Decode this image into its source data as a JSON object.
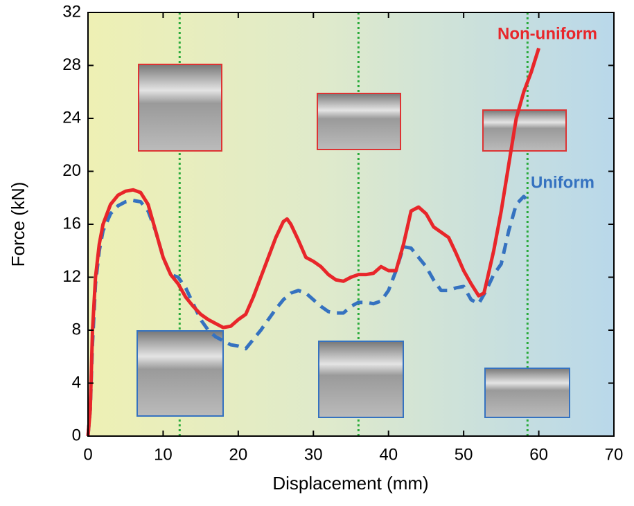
{
  "chart_data": {
    "type": "line",
    "x_label": "Displacement (mm)",
    "y_label": "Force (kN)",
    "xlim": [
      0,
      70
    ],
    "xticks": [
      0,
      10,
      20,
      30,
      40,
      50,
      60,
      70
    ],
    "ylim": [
      0,
      32
    ],
    "yticks": [
      0,
      4,
      8,
      12,
      16,
      20,
      24,
      28,
      32
    ],
    "reference_lines": [
      12.2,
      36,
      58.5
    ],
    "reference_color": "#2aaa3a",
    "series": [
      {
        "name": "Non-uniform",
        "color": "#e8262a",
        "dashed": false,
        "x": [
          0,
          0.3,
          0.6,
          1,
          1.5,
          2,
          3,
          4,
          5,
          6,
          7,
          8,
          9,
          10,
          11,
          12,
          13,
          14,
          15,
          16,
          17,
          18,
          19,
          20,
          21,
          22,
          23,
          24,
          25,
          26,
          26.5,
          27,
          28,
          29,
          30,
          31,
          32,
          33,
          34,
          35,
          36,
          37,
          38,
          39,
          40,
          41,
          42,
          43,
          44,
          45,
          46,
          47,
          48,
          49,
          50,
          51,
          52,
          52.7,
          53,
          54,
          55,
          56,
          57,
          58,
          59,
          60
        ],
        "values": [
          0,
          2,
          8,
          12,
          14.5,
          16,
          17.5,
          18.2,
          18.5,
          18.6,
          18.4,
          17.5,
          15.5,
          13.5,
          12.2,
          11.5,
          10.5,
          9.8,
          9.2,
          8.8,
          8.5,
          8.2,
          8.3,
          8.8,
          9.2,
          10.5,
          12,
          13.5,
          15,
          16.2,
          16.4,
          16,
          14.8,
          13.5,
          13.2,
          12.8,
          12.2,
          11.8,
          11.7,
          12,
          12.2,
          12.2,
          12.3,
          12.8,
          12.5,
          12.5,
          14.5,
          17,
          17.3,
          16.8,
          15.8,
          15.4,
          15,
          13.8,
          12.5,
          11.5,
          10.6,
          10.8,
          11.5,
          14,
          17,
          20.5,
          24,
          26,
          27.5,
          29.3
        ]
      },
      {
        "name": "Uniform",
        "color": "#3572c0",
        "dashed": true,
        "x": [
          0,
          0.3,
          0.6,
          1,
          1.5,
          2,
          3,
          4,
          5,
          6,
          7,
          8,
          9,
          10,
          11,
          12,
          13,
          14,
          15,
          16,
          17,
          18,
          19,
          20,
          21,
          22,
          23,
          24,
          25,
          26,
          27,
          28,
          29,
          30,
          31,
          32,
          33,
          34,
          35,
          36,
          37,
          38,
          39,
          40,
          41,
          42,
          43,
          44,
          45,
          46,
          47,
          48,
          49,
          50,
          51,
          52,
          53,
          54,
          55,
          56,
          57,
          58,
          58.5
        ],
        "values": [
          0,
          2,
          7,
          11.5,
          14,
          15.5,
          16.8,
          17.4,
          17.7,
          17.8,
          17.7,
          17,
          15.5,
          13.5,
          12.2,
          12,
          11.2,
          10,
          8.8,
          8,
          7.5,
          7.2,
          6.9,
          6.8,
          6.6,
          7.3,
          8,
          8.8,
          9.6,
          10.3,
          10.8,
          11,
          10.8,
          10.3,
          9.8,
          9.4,
          9.3,
          9.3,
          9.8,
          10.1,
          10.1,
          10,
          10.2,
          11,
          12.5,
          14.3,
          14.2,
          13.5,
          12.8,
          11.8,
          11,
          11,
          11.2,
          11.3,
          10.3,
          10,
          11,
          12.2,
          13,
          15.5,
          17.5,
          18.1,
          17.8
        ]
      }
    ]
  }
}
